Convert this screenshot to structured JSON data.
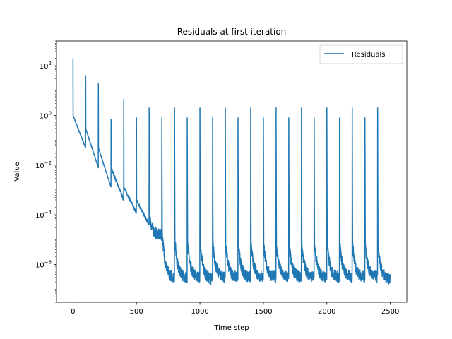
{
  "chart_data": {
    "type": "line",
    "title": "Residuals at first iteration",
    "xlabel": "Time step",
    "ylabel": "Value",
    "xlim": [
      -130,
      2630
    ],
    "ylim": [
      3e-08,
      1000
    ],
    "yscale": "log",
    "grid": false,
    "legend_position": "top-right",
    "color": "#1f77b4",
    "x_ticks": [
      0,
      500,
      1000,
      1500,
      2000,
      2500
    ],
    "x_tick_labels": [
      "0",
      "500",
      "1000",
      "1500",
      "2000",
      "2500"
    ],
    "y_ticks": [
      1e-06,
      0.0001,
      0.01,
      1,
      100
    ],
    "y_tick_labels": [
      {
        "base": "10",
        "exp": "−6"
      },
      {
        "base": "10",
        "exp": "−4"
      },
      {
        "base": "10",
        "exp": "−2"
      },
      {
        "base": "10",
        "exp": "0"
      },
      {
        "base": "10",
        "exp": "2"
      }
    ],
    "series": [
      {
        "name": "Residuals",
        "restart_interval": 100,
        "restart_count": 25,
        "peaks": [
          200,
          40,
          20,
          0.7,
          4.5,
          0.8,
          2.0,
          0.8,
          2.0,
          0.8,
          2.0,
          0.8,
          2.0,
          0.8,
          2.0,
          0.8,
          2.0,
          0.8,
          2.0,
          0.8,
          2.0,
          0.8,
          2.0,
          0.8,
          2.0
        ],
        "segment_starts": [
          1.0,
          0.3,
          0.05,
          0.008,
          0.0013,
          0.0004,
          0.00012,
          4e-05,
          1.5e-05,
          1.2e-05,
          1e-05,
          1e-05,
          1e-05,
          1e-05,
          1e-05,
          1e-05,
          1e-05,
          1e-05,
          1e-05,
          1e-05,
          1e-05,
          1e-05,
          1e-05,
          1e-05,
          1e-05
        ],
        "segment_ends": [
          0.05,
          0.008,
          0.0013,
          0.0004,
          0.00012,
          4e-05,
          1.5e-05,
          3e-07,
          3e-07,
          3e-07,
          2.5e-07,
          3e-07,
          3e-07,
          3e-07,
          3e-07,
          3e-07,
          3e-07,
          3e-07,
          3e-07,
          3e-07,
          3e-07,
          3e-07,
          3e-07,
          3e-07,
          2.5e-07
        ]
      }
    ]
  }
}
